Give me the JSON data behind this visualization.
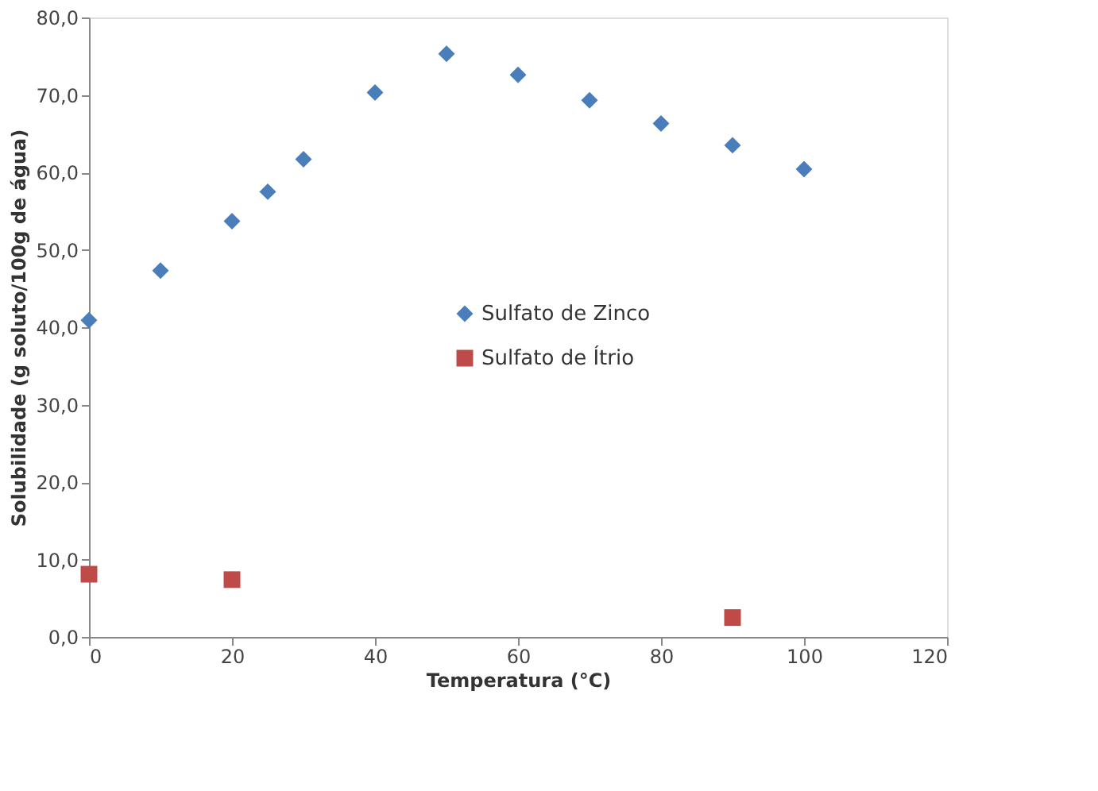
{
  "chart_data": {
    "type": "scatter",
    "xlabel": "Temperatura (°C)",
    "ylabel": "Solubilidade  (g soluto/100g de água)",
    "xlim": [
      0,
      120
    ],
    "xticks": [
      0,
      20,
      40,
      60,
      80,
      100,
      120
    ],
    "ylim": [
      0,
      80
    ],
    "yticks": [
      {
        "value": 0,
        "label": "0,0"
      },
      {
        "value": 10,
        "label": "10,0"
      },
      {
        "value": 20,
        "label": "20,0"
      },
      {
        "value": 30,
        "label": "30,0"
      },
      {
        "value": 40,
        "label": "40,0"
      },
      {
        "value": 50,
        "label": "50,0"
      },
      {
        "value": 60,
        "label": "60,0"
      },
      {
        "value": 70,
        "label": "70,0"
      },
      {
        "value": 80,
        "label": "80,0"
      }
    ],
    "grid": false,
    "legend": "center",
    "series": [
      {
        "name": "Sulfato de Zinco",
        "color": "#4a7ebb",
        "marker": "diamond",
        "x": [
          0,
          10,
          20,
          25,
          30,
          40,
          50,
          60,
          70,
          80,
          90,
          100
        ],
        "values": [
          40.9,
          47.3,
          53.7,
          57.5,
          61.7,
          70.3,
          75.3,
          72.6,
          69.3,
          66.3,
          63.5,
          60.4
        ]
      },
      {
        "name": "Sulfato de Ítrio",
        "color": "#be4b48",
        "marker": "square",
        "x": [
          0,
          20,
          90
        ],
        "values": [
          8.1,
          7.4,
          2.5
        ]
      }
    ]
  }
}
